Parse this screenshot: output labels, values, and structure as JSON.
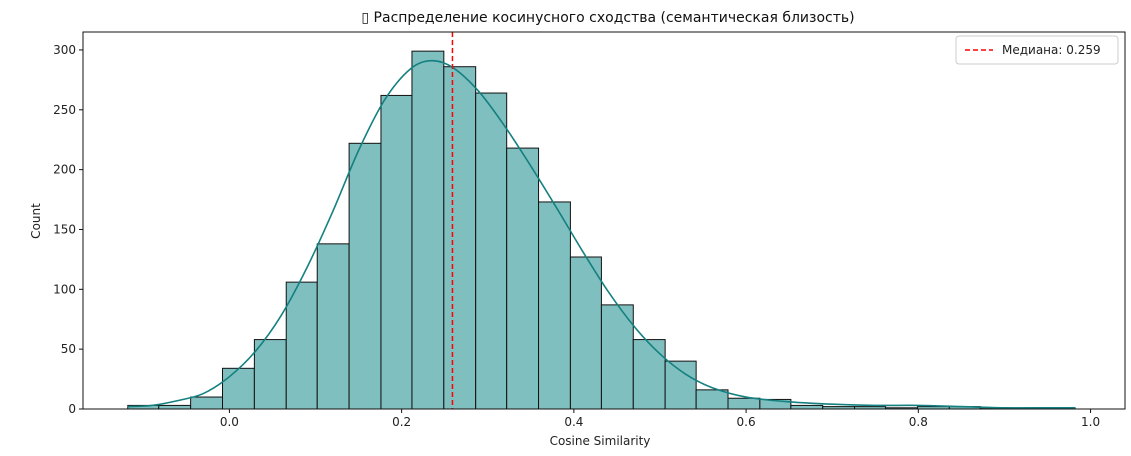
{
  "chart_data": {
    "type": "bar",
    "title": "▯ Распределение косинусного сходства (семантическая близость)",
    "xlabel": "Cosine Similarity",
    "ylabel": "Count",
    "xlim": [
      -0.17,
      1.04
    ],
    "ylim": [
      0,
      315
    ],
    "xticks": [
      0.0,
      0.2,
      0.4,
      0.6,
      0.8,
      1.0
    ],
    "xtick_labels": [
      "0.0",
      "0.2",
      "0.4",
      "0.6",
      "0.8",
      "1.0"
    ],
    "yticks": [
      0,
      50,
      100,
      150,
      200,
      250,
      300
    ],
    "ytick_labels": [
      "0",
      "50",
      "100",
      "150",
      "200",
      "250",
      "300"
    ],
    "bins": [
      {
        "left": -0.118,
        "right": -0.082,
        "count": 3
      },
      {
        "left": -0.082,
        "right": -0.045,
        "count": 3
      },
      {
        "left": -0.045,
        "right": -0.008,
        "count": 10
      },
      {
        "left": -0.008,
        "right": 0.029,
        "count": 34
      },
      {
        "left": 0.029,
        "right": 0.066,
        "count": 58
      },
      {
        "left": 0.066,
        "right": 0.102,
        "count": 106
      },
      {
        "left": 0.102,
        "right": 0.139,
        "count": 138
      },
      {
        "left": 0.139,
        "right": 0.176,
        "count": 222
      },
      {
        "left": 0.176,
        "right": 0.212,
        "count": 262
      },
      {
        "left": 0.212,
        "right": 0.249,
        "count": 299
      },
      {
        "left": 0.249,
        "right": 0.286,
        "count": 286
      },
      {
        "left": 0.286,
        "right": 0.322,
        "count": 264
      },
      {
        "left": 0.322,
        "right": 0.359,
        "count": 218
      },
      {
        "left": 0.359,
        "right": 0.396,
        "count": 173
      },
      {
        "left": 0.396,
        "right": 0.432,
        "count": 127
      },
      {
        "left": 0.432,
        "right": 0.469,
        "count": 87
      },
      {
        "left": 0.469,
        "right": 0.506,
        "count": 58
      },
      {
        "left": 0.506,
        "right": 0.542,
        "count": 40
      },
      {
        "left": 0.542,
        "right": 0.579,
        "count": 16
      },
      {
        "left": 0.579,
        "right": 0.616,
        "count": 9
      },
      {
        "left": 0.616,
        "right": 0.652,
        "count": 8
      },
      {
        "left": 0.652,
        "right": 0.689,
        "count": 3
      },
      {
        "left": 0.689,
        "right": 0.726,
        "count": 2
      },
      {
        "left": 0.726,
        "right": 0.762,
        "count": 2
      },
      {
        "left": 0.762,
        "right": 0.799,
        "count": 1
      },
      {
        "left": 0.799,
        "right": 0.836,
        "count": 2
      },
      {
        "left": 0.836,
        "right": 0.872,
        "count": 2
      },
      {
        "left": 0.872,
        "right": 0.909,
        "count": 1
      },
      {
        "left": 0.909,
        "right": 0.946,
        "count": 1
      },
      {
        "left": 0.946,
        "right": 0.982,
        "count": 1
      }
    ],
    "kde": {
      "x": [
        -0.118,
        -0.09,
        -0.06,
        -0.03,
        0.0,
        0.03,
        0.06,
        0.09,
        0.12,
        0.15,
        0.18,
        0.21,
        0.235,
        0.26,
        0.29,
        0.32,
        0.35,
        0.38,
        0.41,
        0.44,
        0.47,
        0.5,
        0.53,
        0.56,
        0.6,
        0.65,
        0.7,
        0.75,
        0.8,
        0.85,
        0.9,
        0.95,
        0.982
      ],
      "y": [
        2,
        3,
        7,
        13,
        27,
        48,
        78,
        118,
        165,
        216,
        258,
        284,
        291,
        285,
        265,
        236,
        203,
        168,
        132,
        98,
        69,
        46,
        29,
        18,
        10,
        6,
        4,
        3,
        3,
        2,
        1,
        1,
        1
      ]
    },
    "median": {
      "value": 0.259,
      "label": "Медиана: 0.259"
    },
    "legend_position": "top-right",
    "grid": false,
    "colors": {
      "bar_fill": "#80bfbf",
      "bar_edge": "#111111",
      "kde_line": "#148080",
      "median_line": "#ff0000"
    }
  }
}
